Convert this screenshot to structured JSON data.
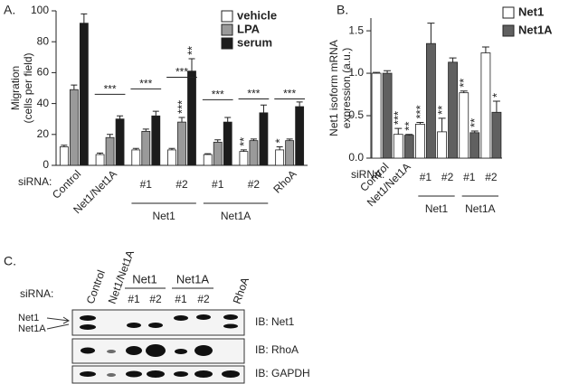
{
  "chart_data": [
    {
      "type": "bar",
      "panel": "A.",
      "y_label": [
        "Migration",
        "(cells per field)"
      ],
      "x_prefix": "siRNA:",
      "categories": [
        "Control",
        "Net1/Net1A",
        "#1",
        "#2",
        "#1",
        "#2",
        "RhoA"
      ],
      "category_groups": [
        null,
        null,
        "Net1",
        "Net1",
        "Net1A",
        "Net1A",
        null
      ],
      "bracket_significance": [
        null,
        "***",
        "***",
        "***",
        "***",
        "***",
        "***"
      ],
      "series": [
        {
          "name": "vehicle",
          "color": "#ffffff",
          "values": [
            12,
            7,
            10,
            10,
            7,
            9,
            10
          ],
          "errors": [
            1,
            1,
            1,
            1,
            0.5,
            1,
            2
          ],
          "significance": [
            null,
            null,
            null,
            null,
            null,
            "**",
            "*"
          ]
        },
        {
          "name": "LPA",
          "color": "#9a9a9a",
          "values": [
            49,
            18,
            22,
            28,
            15,
            16,
            16
          ],
          "errors": [
            3,
            2,
            1.5,
            3,
            1.5,
            1,
            1
          ],
          "significance": [
            null,
            null,
            null,
            "***",
            null,
            null,
            null
          ]
        },
        {
          "name": "serum",
          "color": "#1c1c1c",
          "values": [
            92,
            30,
            32,
            61,
            28,
            34,
            38
          ],
          "errors": [
            6,
            2,
            3,
            8,
            3,
            5,
            3
          ],
          "significance": [
            null,
            null,
            null,
            "**",
            null,
            null,
            null
          ]
        }
      ],
      "ylim": [
        0,
        100
      ],
      "yticks": [
        0,
        20,
        40,
        60,
        80,
        100
      ]
    },
    {
      "type": "bar",
      "panel": "B.",
      "y_label": [
        "Net1 isoform mRNA",
        "expression (a.u.)"
      ],
      "x_prefix": "siRNA:",
      "categories": [
        "Control",
        "Net1/Net1A",
        "#1",
        "#2",
        "#1",
        "#2"
      ],
      "category_groups": [
        null,
        null,
        "Net1",
        "Net1",
        "Net1A",
        "Net1A"
      ],
      "series": [
        {
          "name": "Net1",
          "color": "#ffffff",
          "values": [
            1.0,
            0.28,
            0.4,
            0.31,
            0.77,
            1.24
          ],
          "errors": [
            0.01,
            0.07,
            0.02,
            0.16,
            0.02,
            0.07
          ],
          "significance": [
            null,
            "***",
            "***",
            "**",
            "**",
            null
          ]
        },
        {
          "name": "Net1A",
          "color": "#606060",
          "values": [
            1.0,
            0.27,
            1.35,
            1.13,
            0.3,
            0.54
          ],
          "errors": [
            0.03,
            0.01,
            0.24,
            0.05,
            0.02,
            0.13
          ],
          "significance": [
            null,
            "**",
            null,
            null,
            "**",
            "*"
          ]
        }
      ],
      "ylim": [
        0,
        1.65
      ],
      "yticks": [
        {
          "value": 0,
          "label": "0.0"
        },
        0.5,
        {
          "value": 1,
          "label": "1.0"
        },
        1.5
      ]
    }
  ],
  "blot": {
    "panel": "C.",
    "prefix": "siRNA:",
    "lanes": [
      "Control",
      "Net1/Net1A",
      "#1",
      "#2",
      "#1",
      "#2",
      "RhoA"
    ],
    "groups": [
      "Net1",
      "Net1A"
    ],
    "band_labels": [
      "Net1",
      "Net1A"
    ],
    "rows": [
      "IB: Net1",
      "IB: RhoA",
      "IB: GAPDH"
    ]
  }
}
